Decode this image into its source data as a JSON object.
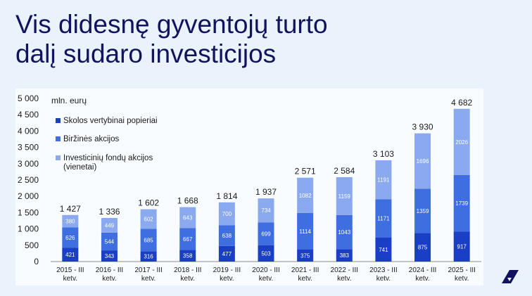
{
  "page": {
    "title_line1": "Vis didesnę gyventojų turto",
    "title_line2": "dalį sudaro investicijos"
  },
  "colors": {
    "background": "#eaf3fb",
    "panel": "#f9fcff",
    "title": "#12125e",
    "series_dark": "#1a3fc4",
    "series_mid": "#3f6ee0",
    "series_light": "#8aa9ee"
  },
  "logo": {
    "icon": "brand-logo-icon"
  },
  "chart_data": {
    "type": "bar",
    "stacked": true,
    "ylabel": "mln. eurų",
    "ylim": [
      0,
      5000
    ],
    "ytick_step": 500,
    "ytick_labels": [
      "0",
      "500",
      "1 000",
      "1 500",
      "2 000",
      "2 500",
      "3 000",
      "3 500",
      "4 000",
      "4 500",
      "5 000"
    ],
    "grid": false,
    "legend_position": "top-left",
    "categories": [
      [
        "2015 - III",
        "ketv."
      ],
      [
        "2016 - III",
        "ketv."
      ],
      [
        "2017 - III",
        "ketv."
      ],
      [
        "2018 - III",
        "ketv."
      ],
      [
        "2019 - III",
        "ketv."
      ],
      [
        "2020 - III",
        "ketv."
      ],
      [
        "2021 - III",
        "ketv."
      ],
      [
        "2022 - III",
        "ketv."
      ],
      [
        "2023 - III",
        "ketv."
      ],
      [
        "2024 - III",
        "ketv."
      ],
      [
        "2025 - III",
        "ketv."
      ]
    ],
    "totals": [
      1427,
      1336,
      1602,
      1668,
      1814,
      1937,
      2571,
      2584,
      3103,
      3930,
      4682
    ],
    "total_labels": [
      "1 427",
      "1 336",
      "1 602",
      "1 668",
      "1 814",
      "1 937",
      "2 571",
      "2 584",
      "3 103",
      "3 930",
      "4 682"
    ],
    "series": [
      {
        "name": "Skolos vertybinai popieriai",
        "legend_lines": [
          "Skolos vertybinai popieriai"
        ],
        "color": "#1a3fc4",
        "values": [
          421,
          343,
          316,
          358,
          477,
          503,
          375,
          383,
          741,
          875,
          917
        ]
      },
      {
        "name": "Biržinės akcijos",
        "legend_lines": [
          "Biržinės akcijos"
        ],
        "color": "#3f6ee0",
        "values": [
          626,
          544,
          685,
          667,
          638,
          699,
          1114,
          1043,
          1171,
          1359,
          1739
        ]
      },
      {
        "name": "Investicinių fondų akcijos (vienetai)",
        "legend_lines": [
          "Investicinių fondų akcijos",
          "(vienetai)"
        ],
        "color": "#8aa9ee",
        "values": [
          380,
          449,
          602,
          643,
          700,
          734,
          1082,
          1159,
          1191,
          1696,
          2026
        ]
      }
    ]
  }
}
